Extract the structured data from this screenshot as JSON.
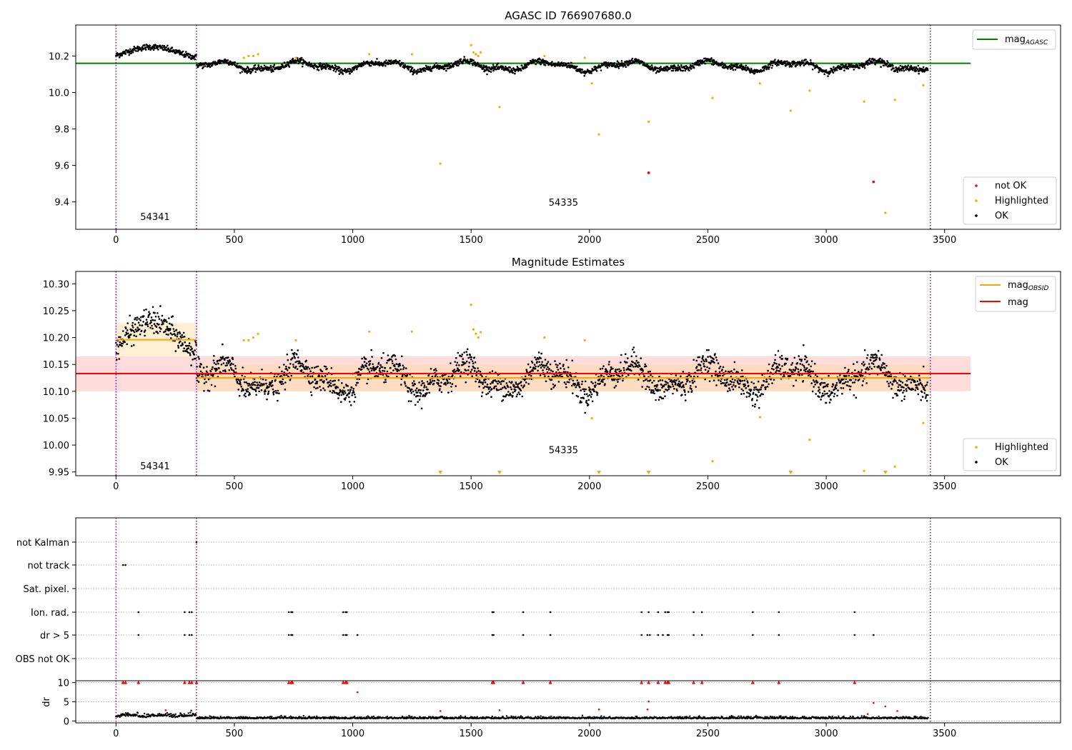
{
  "colors": {
    "ok": "#000000",
    "highlighted": "#ffa500",
    "not_ok": "#ff0000",
    "mag_agasc": "#008000",
    "mag_obsid": "#ffa500",
    "mag": "#ff0000",
    "obs_boundary": "#800080",
    "band_mag": "#ffc0c0",
    "band_obsid": "#ffdca0"
  },
  "chart_data": [
    {
      "type": "scatter",
      "title": "AGASC ID 766907680.0",
      "xlim": [
        -170,
        3990
      ],
      "ylim": [
        9.25,
        10.37
      ],
      "xticks": [
        "0",
        "500",
        "1000",
        "1500",
        "2000",
        "2500",
        "3000",
        "3500"
      ],
      "yticks": [
        "9.4",
        "9.6",
        "9.8",
        "10.0",
        "10.2"
      ],
      "obs_boundaries": [
        0,
        340,
        3440
      ],
      "obs_labels": [
        {
          "text": "54341",
          "x": 165,
          "y": 9.3
        },
        {
          "text": "54335",
          "x": 1890,
          "y": 9.38
        }
      ],
      "mag_agasc": {
        "value": 10.16,
        "x_range": [
          -170,
          3610
        ]
      },
      "legend_upper": [
        {
          "label": "mag",
          "sub": "AGASC",
          "color": "#008000"
        }
      ],
      "legend_lower": [
        {
          "label": "not OK",
          "color": "#ff0000"
        },
        {
          "label": "Highlighted",
          "color": "#ffa500"
        },
        {
          "label": "OK",
          "color": "#000000"
        }
      ],
      "highlighted_points": [
        [
          540,
          10.19
        ],
        [
          560,
          10.2
        ],
        [
          580,
          10.2
        ],
        [
          600,
          10.21
        ],
        [
          760,
          10.19
        ],
        [
          1070,
          10.21
        ],
        [
          1250,
          10.21
        ],
        [
          1370,
          9.61
        ],
        [
          1500,
          10.26
        ],
        [
          1510,
          10.22
        ],
        [
          1520,
          10.21
        ],
        [
          1530,
          10.2
        ],
        [
          1540,
          10.22
        ],
        [
          1620,
          9.92
        ],
        [
          1810,
          10.2
        ],
        [
          1980,
          10.19
        ],
        [
          2010,
          10.05
        ],
        [
          2040,
          9.77
        ],
        [
          2250,
          9.84
        ],
        [
          2520,
          9.97
        ],
        [
          2720,
          10.05
        ],
        [
          2850,
          9.9
        ],
        [
          2930,
          10.01
        ],
        [
          3160,
          9.95
        ],
        [
          3250,
          9.34
        ],
        [
          3290,
          9.96
        ],
        [
          3410,
          10.04
        ]
      ],
      "not_ok_points": [
        [
          2250,
          9.56
        ],
        [
          3200,
          9.51
        ]
      ]
    },
    {
      "type": "scatter",
      "title": "Magnitude Estimates",
      "xlim": [
        -170,
        3990
      ],
      "ylim": [
        9.943,
        10.323
      ],
      "xticks": [
        "0",
        "500",
        "1000",
        "1500",
        "2000",
        "2500",
        "3000",
        "3500"
      ],
      "yticks": [
        "9.95",
        "10.00",
        "10.05",
        "10.10",
        "10.15",
        "10.20",
        "10.25",
        "10.30"
      ],
      "obs_boundaries": [
        0,
        340,
        3440
      ],
      "obs_labels": [
        {
          "text": "54341",
          "x": 165,
          "y": 9.955
        },
        {
          "text": "54335",
          "x": 1890,
          "y": 9.985
        }
      ],
      "mag": {
        "value": 10.133,
        "band": [
          10.1,
          10.165
        ],
        "x_range": [
          -170,
          3610
        ]
      },
      "mag_obsid": [
        {
          "obsid": "54341",
          "value": 10.196,
          "band": [
            10.165,
            10.227
          ],
          "x_range": [
            0,
            340
          ]
        },
        {
          "obsid": "54335",
          "value": 10.125,
          "band": [
            10.1,
            10.15
          ],
          "x_range": [
            340,
            3440
          ]
        }
      ],
      "legend_upper": [
        {
          "label": "mag",
          "sub": "OBSID",
          "color": "#ffa500"
        },
        {
          "label": "mag",
          "sub": "",
          "color": "#ff0000"
        }
      ],
      "legend_lower": [
        {
          "label": "Highlighted",
          "color": "#ffa500"
        },
        {
          "label": "OK",
          "color": "#000000"
        }
      ],
      "highlighted_points": [
        [
          540,
          10.195
        ],
        [
          560,
          10.195
        ],
        [
          580,
          10.2
        ],
        [
          600,
          10.207
        ],
        [
          760,
          10.195
        ],
        [
          1070,
          10.211
        ],
        [
          1250,
          10.211
        ],
        [
          1500,
          10.261
        ],
        [
          1510,
          10.215
        ],
        [
          1520,
          10.207
        ],
        [
          1530,
          10.2
        ],
        [
          1540,
          10.21
        ],
        [
          1810,
          10.2
        ],
        [
          1980,
          10.195
        ],
        [
          2010,
          10.05
        ],
        [
          2520,
          9.97
        ],
        [
          2720,
          10.052
        ],
        [
          2930,
          10.01
        ],
        [
          3160,
          9.952
        ],
        [
          3290,
          9.96
        ],
        [
          3410,
          10.041
        ]
      ],
      "below_range_markers": [
        1370,
        1620,
        2040,
        2250,
        2850,
        3250
      ]
    },
    {
      "type": "scatter",
      "title": "",
      "xlim": [
        -170,
        3990
      ],
      "xticks": [
        "0",
        "500",
        "1000",
        "1500",
        "2000",
        "2500",
        "3000",
        "3500"
      ],
      "categories": [
        "not Kalman",
        "not track",
        "Sat. pixel.",
        "Ion. rad.",
        "dr > 5",
        "OBS not OK"
      ],
      "flag_points": {
        "not Kalman": [
          340
        ],
        "not track": [
          30,
          40
        ],
        "Sat. pixel.": [],
        "Ion. rad.": [
          95,
          290,
          310,
          320,
          730,
          740,
          745,
          960,
          970,
          975,
          1590,
          1595,
          1720,
          1835,
          2220,
          2250,
          2290,
          2320,
          2330,
          2335,
          2440,
          2475,
          2690,
          2800,
          3120
        ],
        "dr > 5": [
          95,
          290,
          310,
          320,
          730,
          740,
          745,
          960,
          970,
          975,
          1020,
          1590,
          1595,
          1720,
          1835,
          2220,
          2245,
          2255,
          2290,
          2310,
          2330,
          2335,
          2440,
          2475,
          2690,
          2800,
          3120,
          3200
        ],
        "OBS not OK": []
      },
      "dr_ylabel": "dr",
      "dr_yticks": [
        "0",
        "5",
        "10"
      ],
      "dr_ylim": [
        -0.5,
        10.5
      ],
      "dr_clipped_x": [
        30,
        40,
        95,
        290,
        310,
        320,
        340,
        730,
        740,
        745,
        960,
        970,
        975,
        1590,
        1595,
        1720,
        1835,
        2220,
        2250,
        2290,
        2320,
        2330,
        2335,
        2440,
        2475,
        2690,
        2800,
        3120
      ],
      "dr_outliers": [
        [
          1020,
          7.5
        ],
        [
          2250,
          5.1
        ],
        [
          2245,
          3.0
        ],
        [
          3200,
          4.7
        ],
        [
          3250,
          3.8
        ],
        [
          210,
          2.8
        ],
        [
          1370,
          2.6
        ],
        [
          1620,
          2.8
        ],
        [
          2040,
          3.0
        ],
        [
          3300,
          2.6
        ],
        [
          3175,
          1.8
        ]
      ]
    }
  ]
}
